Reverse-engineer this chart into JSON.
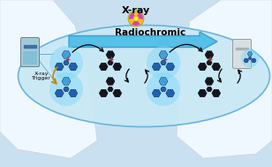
{
  "bg_top": "#daeef8",
  "bg_color": "#e8f4fa",
  "title_text": "X-ray",
  "radiochromic_text": "Radiochromic",
  "xray_trigger_text": "X-ray\nTrigger",
  "arrow_color": "#55c0e8",
  "radiation_symbol_bg": "#f0c020",
  "radiation_symbol_fg": "#d040c0",
  "ellipse_fill": "#c8e8f5",
  "ellipse_edge": "#60b0d8",
  "molecule_blue": "#2060b0",
  "molecule_blue2": "#40a0d8",
  "molecule_glow": "#80d8f8",
  "molecule_dark": "#181820",
  "plus_color": "#e02020",
  "trigger_arrow_color": "#d08000",
  "vial_left_fill": "#a0ccd8",
  "vial_left_stripe": "#3060a0",
  "vial_right_fill": "#d8e0e4",
  "white_coat": "#f0f8ff",
  "light_blue_bg": "#c8e0f0"
}
